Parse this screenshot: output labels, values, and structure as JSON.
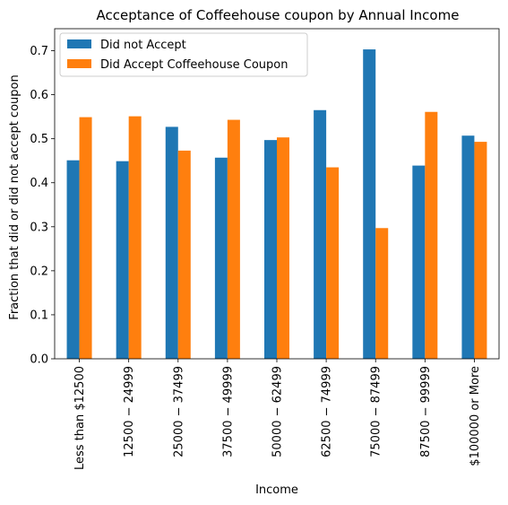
{
  "chart_data": {
    "type": "bar",
    "title": "Acceptance of Coffeehouse coupon by Annual Income",
    "xlabel": "Income",
    "ylabel": "Fraction that did or did not accept coupon",
    "ylim": [
      0,
      0.75
    ],
    "yticks": [
      "0.0",
      "0.1",
      "0.2",
      "0.3",
      "0.4",
      "0.5",
      "0.6",
      "0.7"
    ],
    "ytick_values": [
      0,
      0.1,
      0.2,
      0.3,
      0.4,
      0.5,
      0.6,
      0.7
    ],
    "categories": [
      "Less than $12500",
      "12500 − 24999",
      "25000 − 37499",
      "37500 − 49999",
      "50000 − 62499",
      "62500 − 74999",
      "75000 − 87499",
      "87500 − 99999",
      "$100000 or More"
    ],
    "series": [
      {
        "name": "Did not Accept",
        "color": "#1f77b4",
        "values": [
          0.451,
          0.449,
          0.527,
          0.457,
          0.497,
          0.565,
          0.703,
          0.439,
          0.507
        ]
      },
      {
        "name": "Did Accept Coffeehouse Coupon",
        "color": "#ff7f0e",
        "values": [
          0.549,
          0.551,
          0.473,
          0.543,
          0.503,
          0.435,
          0.297,
          0.561,
          0.493
        ]
      }
    ],
    "legend_position": "top-left",
    "grid": false
  }
}
